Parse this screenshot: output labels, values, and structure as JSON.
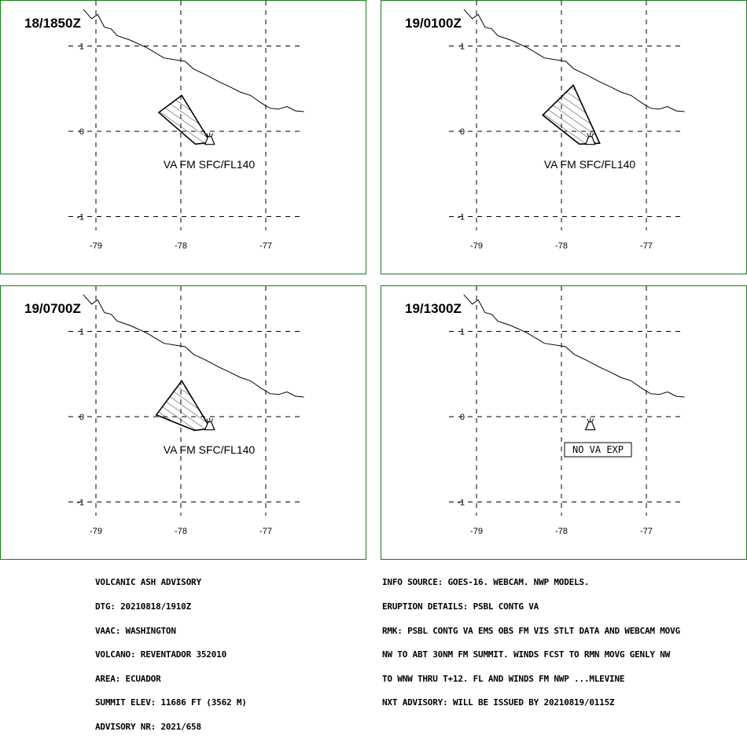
{
  "panels": [
    {
      "time": "18/1850Z",
      "label": "VA FM SFC/FL140",
      "polygon": [
        [
          -78.26,
          0.22
        ],
        [
          -77.99,
          0.42
        ],
        [
          -77.65,
          -0.13
        ],
        [
          -77.83,
          -0.15
        ]
      ]
    },
    {
      "time": "19/0100Z",
      "label": "VA FM SFC/FL140",
      "polygon": [
        [
          -78.22,
          0.19
        ],
        [
          -77.86,
          0.54
        ],
        [
          -77.55,
          -0.14
        ],
        [
          -77.79,
          -0.15
        ]
      ]
    },
    {
      "time": "19/0700Z",
      "label": "VA FM SFC/FL140",
      "polygon": [
        [
          -78.29,
          0.02
        ],
        [
          -77.99,
          0.42
        ],
        [
          -77.65,
          -0.14
        ],
        [
          -77.84,
          -0.16
        ]
      ]
    },
    {
      "time": "19/1300Z",
      "label": "NO VA EXP",
      "polygon": []
    }
  ],
  "axes": {
    "x_ticks": [
      "-79",
      "-78",
      "-77"
    ],
    "y_ticks": [
      "1",
      "0",
      "-1"
    ],
    "x_values": [
      -79,
      -78,
      -77
    ],
    "y_values": [
      1,
      0,
      -1
    ]
  },
  "volcano": {
    "lon": -77.66,
    "lat": -0.08,
    "name": "volcano-symbol"
  },
  "coastline": [
    [
      -79.15,
      1.43
    ],
    [
      -79.05,
      1.32
    ],
    [
      -78.98,
      1.37
    ],
    [
      -78.9,
      1.22
    ],
    [
      -78.82,
      1.2
    ],
    [
      -78.75,
      1.12
    ],
    [
      -78.6,
      1.07
    ],
    [
      -78.4,
      0.98
    ],
    [
      -78.2,
      0.86
    ],
    [
      -77.95,
      0.82
    ],
    [
      -77.85,
      0.73
    ],
    [
      -77.7,
      0.66
    ],
    [
      -77.55,
      0.58
    ],
    [
      -77.42,
      0.52
    ],
    [
      -77.3,
      0.46
    ],
    [
      -77.18,
      0.42
    ],
    [
      -77.05,
      0.33
    ],
    [
      -76.95,
      0.27
    ],
    [
      -76.85,
      0.26
    ],
    [
      -76.75,
      0.29
    ],
    [
      -76.65,
      0.24
    ],
    [
      -76.55,
      0.23
    ]
  ],
  "advisory_left": [
    "VOLCANIC ASH ADVISORY",
    "DTG: 20210818/1910Z",
    "VAAC: WASHINGTON",
    "VOLCANO: REVENTADOR 352010",
    "AREA: ECUADOR",
    "SUMMIT ELEV: 11686 FT (3562 M)",
    "ADVISORY NR: 2021/658"
  ],
  "advisory_right": [
    "INFO SOURCE: GOES-16. WEBCAM. NWP MODELS.",
    "ERUPTION DETAILS: PSBL CONTG VA",
    "RMK: PSBL CONTG VA EMS OBS FM VIS STLT DATA AND WEBCAM MOVG",
    "NW TO ABT 30NM FM SUMMIT. WINDS FCST TO RMN MOVG GENLY NW",
    "TO WNW THRU T+12. FL AND WINDS FM NWP ...MLEVINE",
    "NXT ADVISORY: WILL BE ISSUED BY 20210819/0115Z"
  ]
}
